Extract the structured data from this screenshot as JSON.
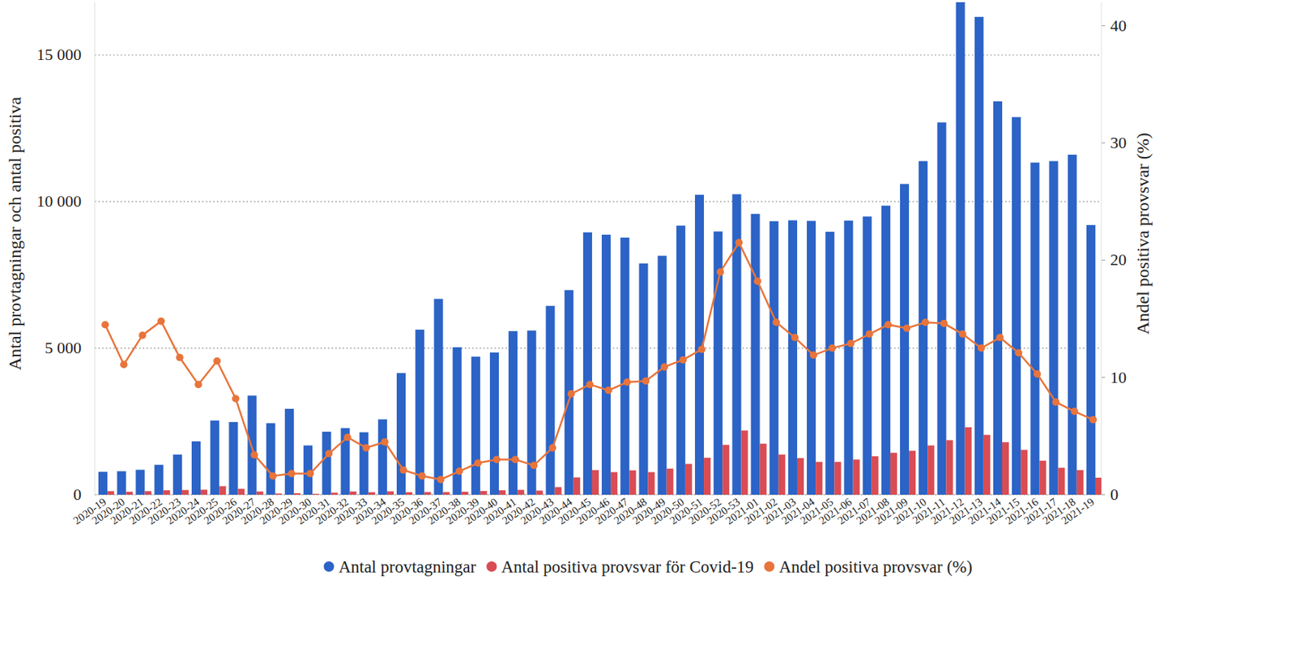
{
  "chart_data": {
    "type": "bar",
    "y_label": "Antal provtagningar och antal positiva",
    "y2_label": "Andel positiva provsvar (%)",
    "categories": [
      "2020-19",
      "2020-20",
      "2020-21",
      "2020-22",
      "2020-23",
      "2020-24",
      "2020-25",
      "2020-26",
      "2020-27",
      "2020-28",
      "2020-29",
      "2020-30",
      "2020-31",
      "2020-32",
      "2020-33",
      "2020-34",
      "2020-35",
      "2020-36",
      "2020-37",
      "2020-38",
      "2020-39",
      "2020-40",
      "2020-41",
      "2020-42",
      "2020-43",
      "2020-44",
      "2020-45",
      "2020-46",
      "2020-47",
      "2020-48",
      "2020-49",
      "2020-50",
      "2020-51",
      "2020-52",
      "2020-53",
      "2021-01",
      "2021-02",
      "2021-03",
      "2021-04",
      "2021-05",
      "2021-06",
      "2021-07",
      "2021-08",
      "2021-09",
      "2021-10",
      "2021-11",
      "2021-12",
      "2021-13",
      "2021-14",
      "2021-15",
      "2021-16",
      "2021-17",
      "2021-18",
      "2021-19"
    ],
    "series": [
      {
        "name": "Antal provtagningar",
        "type": "bar",
        "color": "#2b63c6",
        "values": [
          780,
          800,
          850,
          1020,
          1370,
          1820,
          2530,
          2480,
          3380,
          2440,
          2930,
          1680,
          2150,
          2270,
          2130,
          2570,
          4150,
          5630,
          6680,
          5030,
          4710,
          4850,
          5580,
          5600,
          6440,
          6980,
          8950,
          8870,
          8770,
          7890,
          8150,
          9180,
          10230,
          8980,
          10250,
          9580,
          9330,
          9360,
          9340,
          8970,
          9350,
          9490,
          9860,
          10600,
          11380,
          12700,
          16800,
          16300,
          13420,
          12880,
          11330,
          11380,
          11600,
          9200
        ]
      },
      {
        "name": "Antal positiva provsvar för Covid-19",
        "type": "bar",
        "color": "#d94c53",
        "values": [
          120,
          100,
          120,
          150,
          160,
          170,
          290,
          200,
          110,
          40,
          50,
          30,
          70,
          110,
          85,
          115,
          85,
          90,
          90,
          100,
          125,
          150,
          165,
          140,
          260,
          590,
          840,
          770,
          830,
          770,
          890,
          1050,
          1260,
          1700,
          2190,
          1740,
          1370,
          1250,
          1120,
          1120,
          1200,
          1310,
          1430,
          1500,
          1680,
          1860,
          2300,
          2040,
          1790,
          1530,
          1160,
          920,
          840,
          580
        ]
      },
      {
        "name": "Andel positiva provsvar (%)",
        "type": "line",
        "axis": "y2",
        "color": "#e8743b",
        "marker": "circle",
        "line_style": "solid",
        "values": [
          14.5,
          11.1,
          13.6,
          14.8,
          11.7,
          9.4,
          11.4,
          8.2,
          3.4,
          1.6,
          1.8,
          1.8,
          3.5,
          4.9,
          4.0,
          4.5,
          2.1,
          1.6,
          1.3,
          2.0,
          2.7,
          3.0,
          3.0,
          2.5,
          4.0,
          8.6,
          9.4,
          8.9,
          9.6,
          9.7,
          10.9,
          11.5,
          12.4,
          19.0,
          21.5,
          18.2,
          14.7,
          13.4,
          11.9,
          12.5,
          12.9,
          13.7,
          14.5,
          14.2,
          14.7,
          14.6,
          13.7,
          12.5,
          13.4,
          12.1,
          10.3,
          7.9,
          7.1,
          6.4
        ]
      }
    ],
    "ylim": [
      0,
      16800
    ],
    "yticks": [
      0,
      {
        "value": 5000,
        "label": "5 000"
      },
      {
        "value": 10000,
        "label": "10 000"
      },
      {
        "value": 15000,
        "label": "15 000"
      }
    ],
    "y2lim": [
      0,
      42
    ],
    "y2ticks": [
      0,
      10,
      20,
      30,
      40
    ],
    "grid": true,
    "legend": "bottom"
  }
}
